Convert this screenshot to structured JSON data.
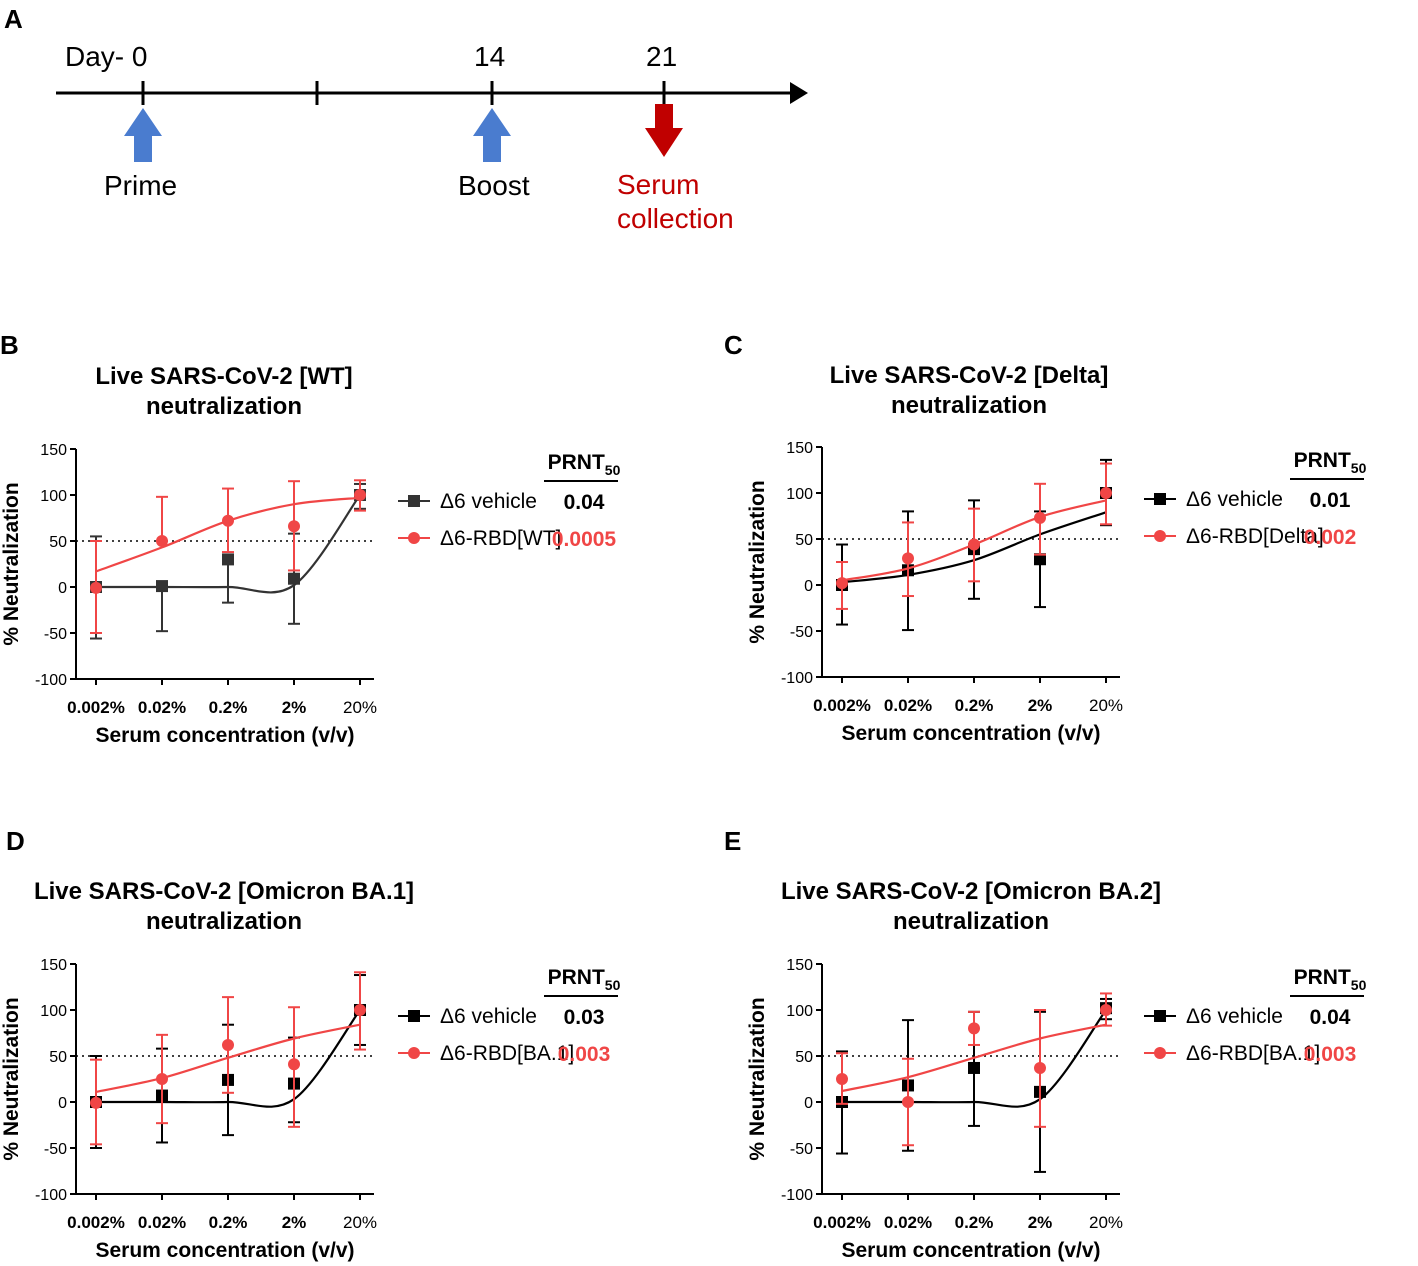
{
  "timeline": {
    "panel_label": "A",
    "day_label": "Day- 0",
    "day_14": "14",
    "day_21": "21",
    "prime_label": "Prime",
    "boost_label": "Boost",
    "serum_label_line1": "Serum",
    "serum_label_line2": "collection",
    "up_arrow_color": "#4a7ccf",
    "down_arrow_color": "#c00000",
    "serum_text_color": "#c00000"
  },
  "colors": {
    "black_series": "#000000",
    "grey_series": "#333333",
    "red_series": "#f04646",
    "red_text": "#f04646"
  },
  "chart_data": [
    {
      "panel": "B",
      "type": "line",
      "title_line1": "Live SARS-CoV-2 [WT]",
      "title_line2": "neutralization",
      "xlabel": "Serum concentration (v/v)",
      "ylabel": "% Neutralization",
      "ylim": [
        -100,
        150
      ],
      "yticks": [
        "150",
        "100",
        "50",
        "0",
        "-50",
        "-100"
      ],
      "categories": [
        "0.002%",
        "0.02%",
        "0.2%",
        "2%",
        "20%"
      ],
      "reference_line": 50,
      "prnt_header": "PRNT",
      "prnt_sub": "50",
      "series": [
        {
          "name": "Δ6 vehicle",
          "prnt50": "0.04",
          "marker": "square",
          "values": [
            0,
            1,
            30,
            9,
            100
          ],
          "err": [
            [
              -56,
              55
            ],
            [
              -48,
              null
            ],
            [
              -17,
              null
            ],
            [
              -40,
              58
            ],
            [
              85,
              112
            ]
          ],
          "curve": [
            0,
            0,
            0,
            2,
            100
          ]
        },
        {
          "name": "Δ6-RBD[WT]",
          "prnt50": "0.0005",
          "marker": "circle",
          "values": [
            -1,
            50,
            72,
            66,
            100
          ],
          "err": [
            [
              -50,
              50
            ],
            [
              null,
              98
            ],
            [
              38,
              107
            ],
            [
              18,
              115
            ],
            [
              83,
              116
            ]
          ],
          "curve": [
            17,
            43,
            72,
            90,
            97
          ]
        }
      ]
    },
    {
      "panel": "C",
      "type": "line",
      "title_line1": "Live SARS-CoV-2 [Delta]",
      "title_line2": "neutralization",
      "xlabel": "Serum concentration (v/v)",
      "ylabel": "% Neutralization",
      "ylim": [
        -100,
        150
      ],
      "yticks": [
        "150",
        "100",
        "50",
        "0",
        "-50",
        "-100"
      ],
      "categories": [
        "0.002%",
        "0.02%",
        "0.2%",
        "2%",
        "20%"
      ],
      "reference_line": 50,
      "prnt_header": "PRNT",
      "prnt_sub": "50",
      "series": [
        {
          "name": "Δ6 vehicle",
          "prnt50": "0.01",
          "marker": "square",
          "values": [
            0,
            16,
            39,
            28,
            100
          ],
          "err": [
            [
              -43,
              44
            ],
            [
              -49,
              80
            ],
            [
              -15,
              92
            ],
            [
              -24,
              80
            ],
            [
              65,
              136
            ]
          ],
          "curve": [
            3,
            11,
            27,
            55,
            79
          ]
        },
        {
          "name": "Δ6-RBD[Delta]",
          "prnt50": "0.002",
          "marker": "circle",
          "values": [
            2,
            29,
            44,
            73,
            100
          ],
          "err": [
            [
              -26,
              25
            ],
            [
              -12,
              68
            ],
            [
              4,
              83
            ],
            [
              33,
              110
            ],
            [
              66,
              132
            ]
          ],
          "curve": [
            5,
            18,
            44,
            74,
            92
          ]
        }
      ]
    },
    {
      "panel": "D",
      "type": "line",
      "title_line1": "Live SARS-CoV-2 [Omicron BA.1]",
      "title_line2": "neutralization",
      "xlabel": "Serum concentration (v/v)",
      "ylabel": "% Neutralization",
      "ylim": [
        -100,
        150
      ],
      "yticks": [
        "150",
        "100",
        "50",
        "0",
        "-50",
        "-100"
      ],
      "categories": [
        "0.002%",
        "0.02%",
        "0.2%",
        "2%",
        "20%"
      ],
      "reference_line": 50,
      "prnt_header": "PRNT",
      "prnt_sub": "50",
      "series": [
        {
          "name": "Δ6 vehicle",
          "prnt50": "0.03",
          "marker": "square",
          "values": [
            0,
            7,
            24,
            20,
            100
          ],
          "err": [
            [
              -50,
              50
            ],
            [
              -44,
              58
            ],
            [
              -36,
              84
            ],
            [
              -22,
              70
            ],
            [
              62,
              138
            ]
          ],
          "curve": [
            0,
            0,
            0,
            3,
            100
          ]
        },
        {
          "name": "Δ6-RBD[BA.1]",
          "prnt50": "0.003",
          "marker": "circle",
          "values": [
            -1,
            25,
            62,
            41,
            100
          ],
          "err": [
            [
              -46,
              46
            ],
            [
              -23,
              73
            ],
            [
              10,
              114
            ],
            [
              -27,
              103
            ],
            [
              57,
              141
            ]
          ],
          "curve": [
            11,
            26,
            48,
            69,
            84
          ]
        }
      ]
    },
    {
      "panel": "E",
      "type": "line",
      "title_line1": "Live SARS-CoV-2 [Omicron BA.2]",
      "title_line2": "neutralization",
      "xlabel": "Serum concentration (v/v)",
      "ylabel": "% Neutralization",
      "ylim": [
        -100,
        150
      ],
      "yticks": [
        "150",
        "100",
        "50",
        "0",
        "-50",
        "-100"
      ],
      "categories": [
        "0.002%",
        "0.02%",
        "0.2%",
        "2%",
        "20%"
      ],
      "reference_line": 50,
      "prnt_header": "PRNT",
      "prnt_sub": "50",
      "series": [
        {
          "name": "Δ6 vehicle",
          "prnt50": "0.04",
          "marker": "square",
          "values": [
            0,
            18,
            37,
            11,
            102
          ],
          "err": [
            [
              -56,
              55
            ],
            [
              -53,
              89
            ],
            [
              -26,
              98
            ],
            [
              -76,
              98
            ],
            [
              90,
              112
            ]
          ],
          "curve": [
            0,
            0,
            0,
            3,
            100
          ]
        },
        {
          "name": "Δ6-RBD[BA.1]",
          "prnt50": "0.003",
          "marker": "circle",
          "values": [
            25,
            0,
            80,
            37,
            100
          ],
          "err": [
            [
              -2,
              53
            ],
            [
              -47,
              47
            ],
            [
              62,
              98
            ],
            [
              -27,
              100
            ],
            [
              83,
              118
            ]
          ],
          "curve": [
            12,
            27,
            48,
            69,
            84
          ]
        }
      ]
    }
  ]
}
